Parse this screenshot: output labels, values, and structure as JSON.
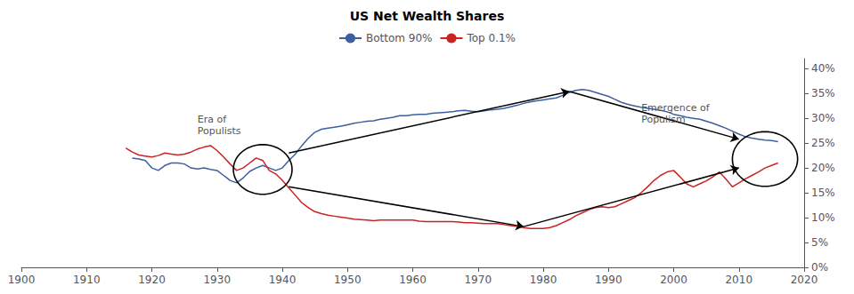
{
  "chart_data": {
    "type": "line",
    "title": "US Net Wealth Shares",
    "x": [
      1916,
      1917,
      1918,
      1919,
      1920,
      1921,
      1922,
      1923,
      1924,
      1925,
      1926,
      1927,
      1928,
      1929,
      1930,
      1931,
      1932,
      1933,
      1934,
      1935,
      1936,
      1937,
      1938,
      1939,
      1940,
      1941,
      1942,
      1943,
      1944,
      1945,
      1946,
      1947,
      1948,
      1949,
      1950,
      1951,
      1952,
      1953,
      1954,
      1955,
      1956,
      1957,
      1958,
      1959,
      1960,
      1961,
      1962,
      1963,
      1964,
      1965,
      1966,
      1967,
      1968,
      1969,
      1970,
      1971,
      1972,
      1973,
      1974,
      1975,
      1976,
      1977,
      1978,
      1979,
      1980,
      1981,
      1982,
      1983,
      1984,
      1985,
      1986,
      1987,
      1988,
      1989,
      1990,
      1991,
      1992,
      1993,
      1994,
      1995,
      1996,
      1997,
      1998,
      1999,
      2000,
      2001,
      2002,
      2003,
      2004,
      2005,
      2006,
      2007,
      2008,
      2009,
      2010,
      2011,
      2012,
      2013,
      2014,
      2015,
      2016
    ],
    "series": [
      {
        "name": "Bottom 90%",
        "color": "#3d5fa0",
        "values": [
          null,
          0.22,
          0.218,
          0.215,
          0.2,
          0.195,
          0.205,
          0.21,
          0.21,
          0.208,
          0.2,
          0.198,
          0.2,
          0.197,
          0.195,
          0.185,
          0.175,
          0.17,
          0.18,
          0.193,
          0.2,
          0.205,
          0.2,
          0.195,
          0.2,
          0.215,
          0.228,
          0.245,
          0.26,
          0.272,
          0.278,
          0.28,
          0.282,
          0.284,
          0.287,
          0.29,
          0.292,
          0.294,
          0.295,
          0.298,
          0.3,
          0.302,
          0.305,
          0.305,
          0.307,
          0.308,
          0.308,
          0.31,
          0.311,
          0.312,
          0.313,
          0.315,
          0.316,
          0.314,
          0.313,
          0.315,
          0.317,
          0.318,
          0.32,
          0.323,
          0.326,
          0.33,
          0.333,
          0.335,
          0.337,
          0.339,
          0.341,
          0.346,
          0.352,
          0.356,
          0.358,
          0.356,
          0.352,
          0.348,
          0.344,
          0.338,
          0.332,
          0.328,
          0.325,
          0.322,
          0.32,
          0.318,
          0.316,
          0.313,
          0.308,
          0.305,
          0.302,
          0.3,
          0.298,
          0.294,
          0.29,
          0.285,
          0.28,
          0.274,
          0.268,
          0.263,
          0.26,
          0.258,
          0.256,
          0.255,
          0.253
        ]
      },
      {
        "name": "Top 0.1%",
        "color": "#cc2222",
        "values": [
          0.24,
          0.232,
          0.226,
          0.224,
          0.222,
          0.225,
          0.23,
          0.228,
          0.226,
          0.228,
          0.232,
          0.238,
          0.242,
          0.245,
          0.235,
          0.222,
          0.208,
          0.195,
          0.2,
          0.21,
          0.22,
          0.215,
          0.195,
          0.188,
          0.175,
          0.16,
          0.145,
          0.13,
          0.12,
          0.112,
          0.108,
          0.105,
          0.103,
          0.101,
          0.099,
          0.097,
          0.096,
          0.095,
          0.094,
          0.095,
          0.095,
          0.095,
          0.095,
          0.095,
          0.095,
          0.093,
          0.092,
          0.092,
          0.092,
          0.092,
          0.092,
          0.091,
          0.09,
          0.09,
          0.089,
          0.088,
          0.088,
          0.088,
          0.086,
          0.084,
          0.082,
          0.08,
          0.078,
          0.078,
          0.078,
          0.08,
          0.084,
          0.09,
          0.096,
          0.104,
          0.11,
          0.116,
          0.12,
          0.122,
          0.12,
          0.122,
          0.128,
          0.134,
          0.14,
          0.15,
          0.162,
          0.175,
          0.185,
          0.192,
          0.195,
          0.182,
          0.168,
          0.162,
          0.168,
          0.174,
          0.182,
          0.192,
          0.178,
          0.162,
          0.17,
          0.178,
          0.185,
          0.192,
          0.2,
          0.205,
          0.21
        ]
      }
    ],
    "xlim": [
      1900,
      2020
    ],
    "xticks": [
      1900,
      1910,
      1920,
      1930,
      1940,
      1950,
      1960,
      1970,
      1980,
      1990,
      2000,
      2010,
      2020
    ],
    "ylim": [
      0.0,
      0.42
    ],
    "yticks": [
      {
        "value": 0.0,
        "label": "0%"
      },
      {
        "value": 0.05,
        "label": "5%"
      },
      {
        "value": 0.1,
        "label": "10%"
      },
      {
        "value": 0.15,
        "label": "15%"
      },
      {
        "value": 0.2,
        "label": "20%"
      },
      {
        "value": 0.25,
        "label": "25%"
      },
      {
        "value": 0.3,
        "label": "30%"
      },
      {
        "value": 0.35,
        "label": "35%"
      },
      {
        "value": 0.4,
        "label": "40%"
      }
    ],
    "grid": false,
    "legend": "top",
    "annotations": [
      {
        "text": "Era of\nPopulists",
        "x": 1927,
        "y": 0.31
      },
      {
        "text": "Emergence of\nPopulism"
      }
    ],
    "ellipses": [
      {
        "cx": 1937,
        "cy": 0.197,
        "width": 9,
        "height": 0.1
      },
      {
        "cx": 2014,
        "cy": 0.218,
        "width": 10,
        "height": 0.11
      }
    ],
    "arrows": [
      {
        "from": [
          1941,
          0.23
        ],
        "to": [
          1984,
          0.354
        ]
      },
      {
        "from": [
          1941,
          0.162
        ],
        "to": [
          1977,
          0.082
        ]
      },
      {
        "from": [
          1984,
          0.354
        ],
        "to": [
          2010,
          0.258
        ]
      },
      {
        "from": [
          1977,
          0.082
        ],
        "to": [
          2010,
          0.2
        ]
      }
    ]
  }
}
